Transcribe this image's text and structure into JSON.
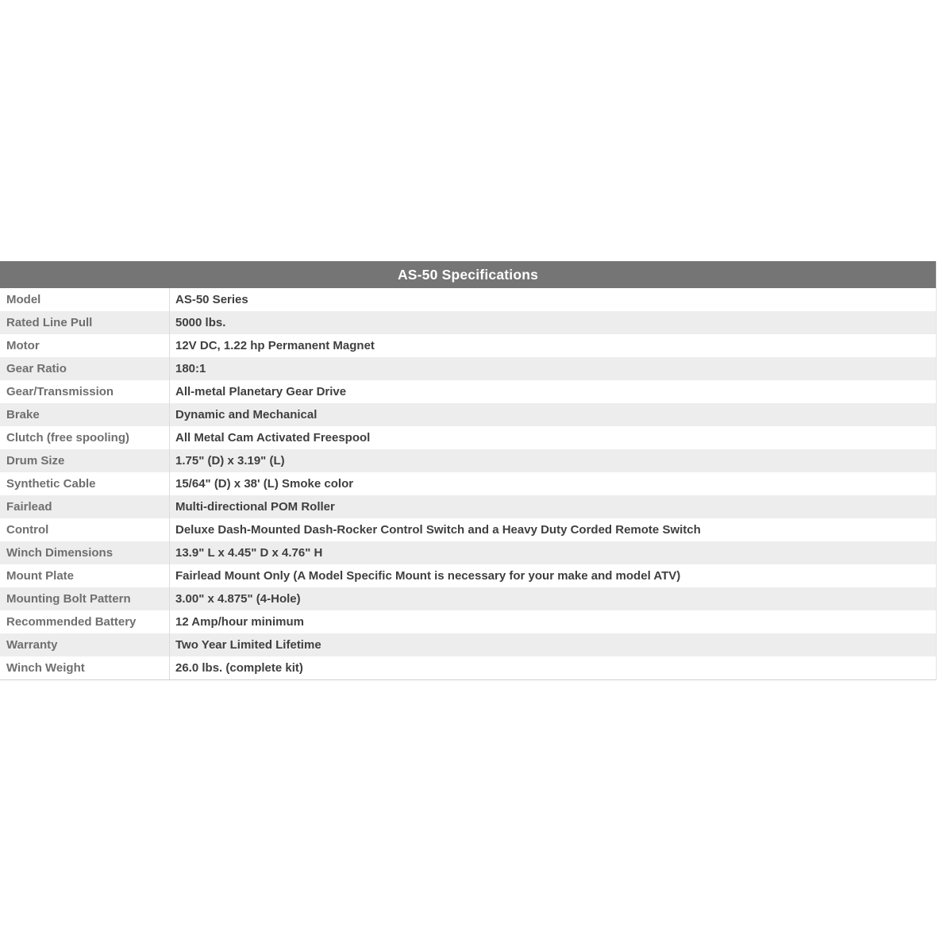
{
  "table": {
    "title": "AS-50 Specifications",
    "rows": [
      {
        "label": "Model",
        "value": "AS-50 Series"
      },
      {
        "label": "Rated Line Pull",
        "value": "5000 lbs."
      },
      {
        "label": "Motor",
        "value": "12V DC, 1.22 hp Permanent Magnet"
      },
      {
        "label": "Gear Ratio",
        "value": "180:1"
      },
      {
        "label": "Gear/Transmission",
        "value": "All-metal Planetary Gear Drive"
      },
      {
        "label": "Brake",
        "value": "Dynamic and Mechanical"
      },
      {
        "label": "Clutch (free spooling)",
        "value": "All Metal Cam Activated Freespool"
      },
      {
        "label": "Drum Size",
        "value": "1.75\" (D) x 3.19\" (L)"
      },
      {
        "label": "Synthetic Cable",
        "value": "15/64\" (D) x 38' (L) Smoke color"
      },
      {
        "label": "Fairlead",
        "value": "Multi-directional POM Roller"
      },
      {
        "label": "Control",
        "value": "Deluxe Dash-Mounted Dash-Rocker Control Switch and a Heavy Duty Corded Remote Switch"
      },
      {
        "label": "Winch Dimensions",
        "value": "13.9\" L x 4.45\" D x 4.76\" H"
      },
      {
        "label": "Mount Plate",
        "value": "Fairlead Mount Only (A Model Specific Mount is necessary for your make and model ATV)"
      },
      {
        "label": "Mounting Bolt Pattern",
        "value": "3.00\" x 4.875\" (4-Hole)"
      },
      {
        "label": "Recommended Battery",
        "value": "12 Amp/hour minimum"
      },
      {
        "label": "Warranty",
        "value": "Two Year Limited Lifetime"
      },
      {
        "label": "Winch Weight",
        "value": "26.0 lbs. (complete kit)"
      }
    ]
  },
  "colors": {
    "header_bg": "#757575",
    "header_text": "#ffffff",
    "stripe_bg": "#ededed",
    "label_text": "#6f6f6f",
    "value_text": "#3f3f3f",
    "divider": "#dcdcdc",
    "border_light": "#e3e3e3",
    "border_bottom": "#cfcfcf"
  }
}
